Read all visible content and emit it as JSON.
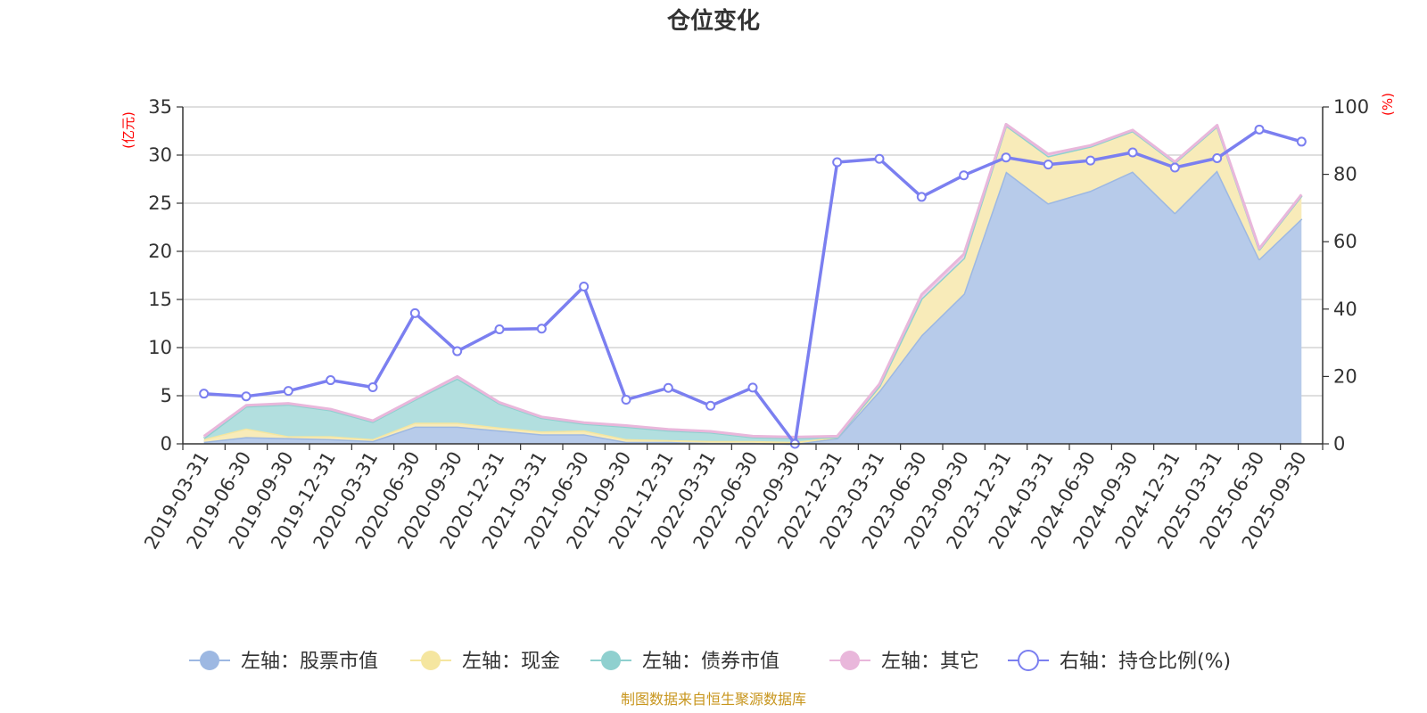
{
  "chart_data": {
    "type": "area",
    "title": "仓位变化",
    "left_axis": {
      "label": "(亿元)",
      "min": 0,
      "max": 35,
      "ticks": [
        "0",
        "5",
        "10",
        "15",
        "20",
        "25",
        "30",
        "35"
      ]
    },
    "right_axis": {
      "label": "(%)",
      "min": 0,
      "max": 100,
      "ticks": [
        "0",
        "20",
        "40",
        "60",
        "80",
        "100"
      ]
    },
    "categories": [
      "2019-03-31",
      "2019-06-30",
      "2019-09-30",
      "2019-12-31",
      "2020-03-31",
      "2020-06-30",
      "2020-09-30",
      "2020-12-31",
      "2021-03-31",
      "2021-06-30",
      "2021-09-30",
      "2021-12-31",
      "2022-03-31",
      "2022-06-30",
      "2022-09-30",
      "2022-12-31",
      "2023-03-31",
      "2023-06-30",
      "2023-09-30",
      "2023-12-31",
      "2024-03-31",
      "2024-06-30",
      "2024-09-30",
      "2024-12-31",
      "2025-03-31",
      "2025-06-30",
      "2025-09-30"
    ],
    "series": [
      {
        "name": "左轴：股票市值",
        "axis": "left",
        "color": "#9db8e2",
        "fill": "#b7cbea",
        "values": [
          0.2,
          0.7,
          0.6,
          0.5,
          0.3,
          1.8,
          1.8,
          1.4,
          1.0,
          1.0,
          0.2,
          0.2,
          0.1,
          0.1,
          0.0,
          0.6,
          5.5,
          11.3,
          15.6,
          28.3,
          25.0,
          26.3,
          28.3,
          24.0,
          28.4,
          19.2,
          23.4
        ]
      },
      {
        "name": "左轴：现金",
        "axis": "left",
        "color": "#f5e6a0",
        "fill": "#f8ebb9",
        "values": [
          0.3,
          0.9,
          0.2,
          0.3,
          0.2,
          0.4,
          0.4,
          0.3,
          0.3,
          0.4,
          0.3,
          0.2,
          0.2,
          0.2,
          0.2,
          0.1,
          0.5,
          3.8,
          3.7,
          4.8,
          4.9,
          4.6,
          4.2,
          5.2,
          4.6,
          1.0,
          2.4
        ]
      },
      {
        "name": "左轴：债券市值",
        "axis": "left",
        "color": "#8fd0cf",
        "fill": "#b2dfdf",
        "values": [
          0.1,
          2.3,
          3.3,
          2.7,
          1.8,
          2.4,
          4.6,
          2.5,
          1.4,
          0.7,
          1.3,
          1.0,
          0.9,
          0.4,
          0.4,
          0.0,
          0.0,
          0.0,
          0.0,
          0.0,
          0.0,
          0.0,
          0.0,
          0.0,
          0.0,
          0.0,
          0.0
        ]
      },
      {
        "name": "左轴：其它",
        "axis": "left",
        "color": "#e9b7db",
        "fill": "#f1d0e8",
        "values": [
          0.2,
          0.1,
          0.1,
          0.1,
          0.1,
          0.1,
          0.2,
          0.1,
          0.1,
          0.1,
          0.1,
          0.1,
          0.1,
          0.1,
          0.1,
          0.1,
          0.2,
          0.4,
          0.4,
          0.1,
          0.2,
          0.1,
          0.1,
          0.1,
          0.1,
          0.1,
          0.1
        ]
      },
      {
        "name": "右轴：持仓比例(%)",
        "axis": "right",
        "color": "#7b7ff0",
        "values": [
          14.9,
          14.1,
          15.7,
          18.9,
          16.8,
          38.8,
          27.5,
          34.0,
          34.2,
          46.7,
          13.1,
          16.6,
          11.3,
          16.7,
          0.0,
          83.6,
          84.6,
          73.3,
          79.7,
          85.0,
          82.9,
          84.1,
          86.5,
          82.0,
          84.8,
          93.3,
          89.7
        ]
      }
    ],
    "legend_position": "bottom"
  },
  "source_note": "制图数据来自恒生聚源数据库"
}
